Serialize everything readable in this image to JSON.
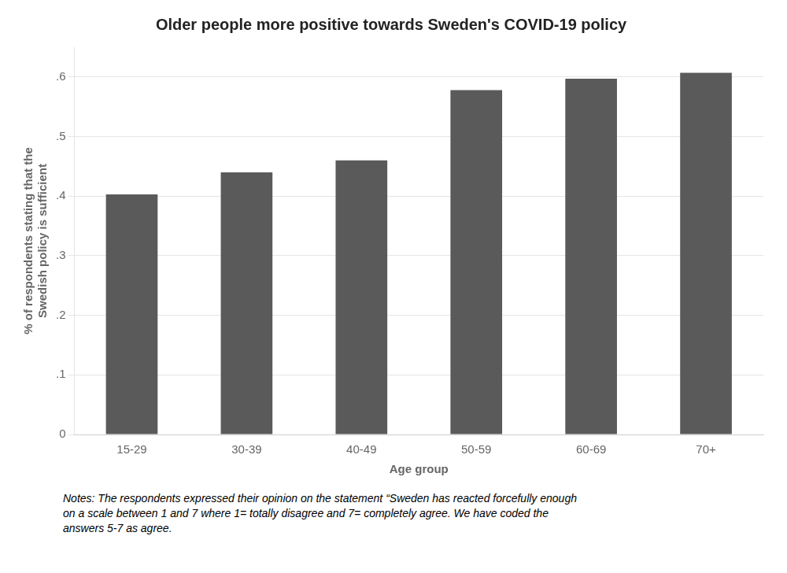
{
  "chart_data": {
    "type": "bar",
    "title": "Older people more positive towards Sweden's COVID-19 policy",
    "categories": [
      "15-29",
      "30-39",
      "40-49",
      "50-59",
      "60-69",
      "70+"
    ],
    "values": [
      0.403,
      0.44,
      0.46,
      0.578,
      0.597,
      0.607
    ],
    "color": "#5a5a5a",
    "xlabel": "Age group",
    "ylabel": "% of respondents stating that the\nSwedish policy is sufficient",
    "ylim": [
      0,
      0.65
    ],
    "yticks": [
      0,
      {
        "value": 0.1,
        "label": ".1"
      },
      {
        "value": 0.2,
        "label": ".2"
      },
      {
        "value": 0.3,
        "label": ".3"
      },
      {
        "value": 0.4,
        "label": ".4"
      },
      {
        "value": 0.5,
        "label": ".5"
      },
      {
        "value": 0.6,
        "label": ".6"
      }
    ],
    "grid": true,
    "annotations": [
      "Notes: The respondents expressed their opinion on the statement “Sweden has reacted forcefully enough\non a scale between 1 and 7 where 1= totally disagree and 7= completely agree. We have coded the\nanswers 5-7 as agree."
    ]
  }
}
